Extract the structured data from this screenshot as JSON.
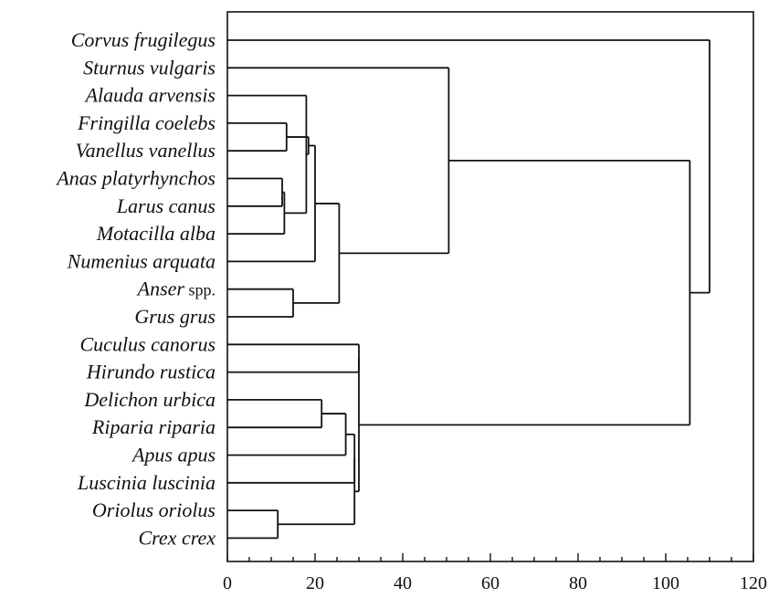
{
  "chart_data": {
    "type": "dendrogram",
    "orientation": "horizontal",
    "xlim": [
      0,
      120
    ],
    "x_ticks": [
      0,
      20,
      40,
      60,
      80,
      100,
      120
    ],
    "x_tick_labels": [
      "0",
      "20",
      "40",
      "60",
      "80",
      "100",
      "120"
    ],
    "leaves": [
      {
        "name": "Corvus frugilegus",
        "suffix": ""
      },
      {
        "name": "Sturnus vulgaris",
        "suffix": ""
      },
      {
        "name": "Alauda arvensis",
        "suffix": ""
      },
      {
        "name": "Fringilla coelebs",
        "suffix": ""
      },
      {
        "name": "Vanellus vanellus",
        "suffix": ""
      },
      {
        "name": "Anas platyrhynchos",
        "suffix": ""
      },
      {
        "name": "Larus canus",
        "suffix": ""
      },
      {
        "name": "Motacilla alba",
        "suffix": ""
      },
      {
        "name": "Numenius arquata",
        "suffix": ""
      },
      {
        "name": "Anser",
        "suffix": "spp."
      },
      {
        "name": "Grus grus",
        "suffix": ""
      },
      {
        "name": "Cuculus canorus",
        "suffix": ""
      },
      {
        "name": "Hirundo rustica",
        "suffix": ""
      },
      {
        "name": "Delichon urbica",
        "suffix": ""
      },
      {
        "name": "Riparia riparia",
        "suffix": ""
      },
      {
        "name": "Apus apus",
        "suffix": ""
      },
      {
        "name": "Luscinia luscinia",
        "suffix": ""
      },
      {
        "name": "Oriolus oriolus",
        "suffix": ""
      },
      {
        "name": "Crex crex",
        "suffix": ""
      }
    ],
    "merges": [
      {
        "id": "m1",
        "children": [
          5,
          6
        ],
        "height": 12.5
      },
      {
        "id": "m2",
        "children": [
          "m1",
          7
        ],
        "height": 13
      },
      {
        "id": "m3",
        "children": [
          3,
          4
        ],
        "height": 13.5
      },
      {
        "id": "m4",
        "children": [
          2,
          "m2"
        ],
        "height": 18
      },
      {
        "id": "m5",
        "children": [
          "m4",
          "m3"
        ],
        "height": 18.5
      },
      {
        "id": "m6",
        "children": [
          "m5",
          8
        ],
        "height": 20
      },
      {
        "id": "m7",
        "children": [
          9,
          10
        ],
        "height": 15
      },
      {
        "id": "m8",
        "children": [
          "m6",
          "m7"
        ],
        "height": 25.5
      },
      {
        "id": "m9",
        "children": [
          1,
          "m8"
        ],
        "height": 50.5
      },
      {
        "id": "m10",
        "children": [
          13,
          14
        ],
        "height": 21.5
      },
      {
        "id": "m11",
        "children": [
          "m10",
          15
        ],
        "height": 27
      },
      {
        "id": "m12",
        "children": [
          17,
          18
        ],
        "height": 11.5
      },
      {
        "id": "m13",
        "children": [
          "m11",
          16
        ],
        "height": 29
      },
      {
        "id": "m14",
        "children": [
          "m13",
          "m12"
        ],
        "height": 29
      },
      {
        "id": "m15",
        "children": [
          11,
          12
        ],
        "height": 30
      },
      {
        "id": "m16",
        "children": [
          "m15",
          "m14"
        ],
        "height": 30
      },
      {
        "id": "m17",
        "children": [
          "m9",
          "m16"
        ],
        "height": 105.5
      },
      {
        "id": "m18",
        "children": [
          0,
          "m17"
        ],
        "height": 110
      }
    ]
  }
}
